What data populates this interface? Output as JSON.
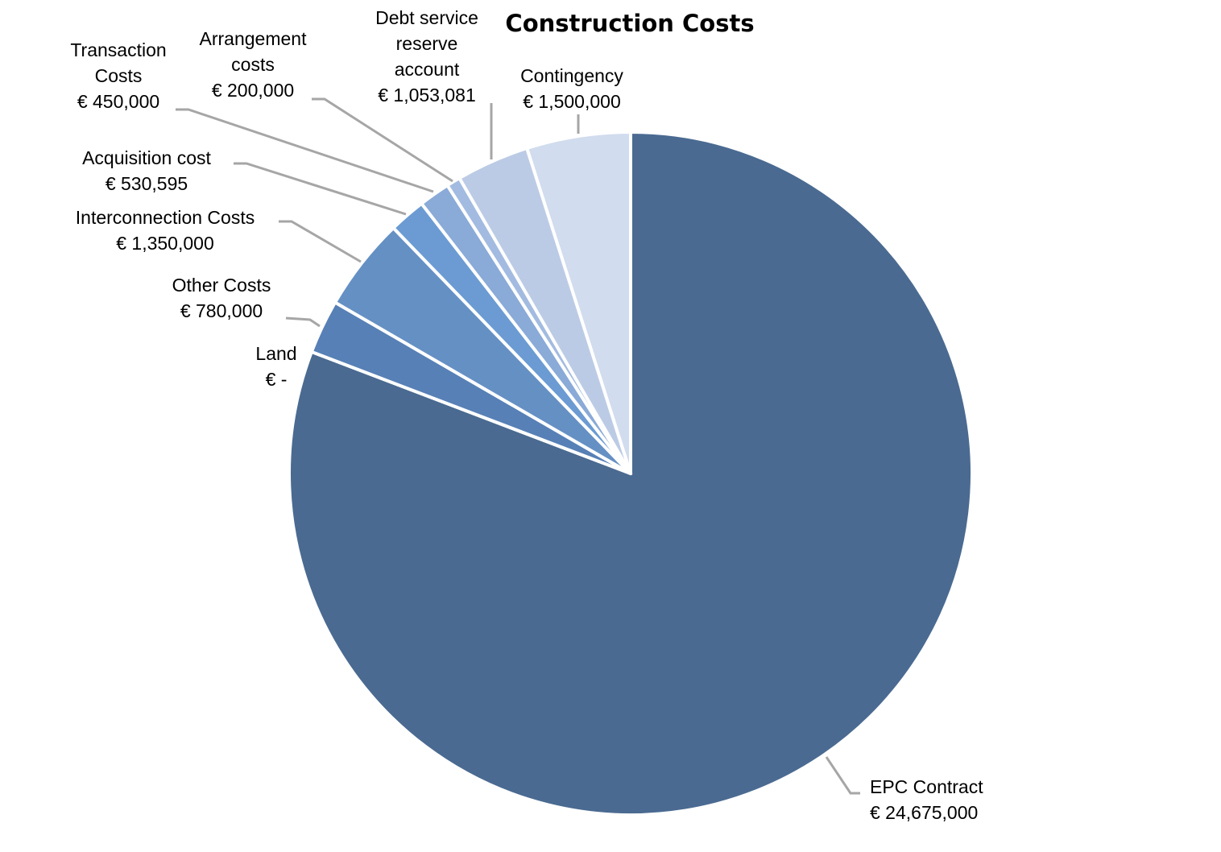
{
  "chart_data": {
    "type": "pie",
    "title": "Construction Costs",
    "start": "top",
    "direction": "clockwise",
    "slices": [
      {
        "name": "EPC Contract",
        "value": 24675000,
        "label_value": "€ 24,675,000",
        "color": "#4a6a91"
      },
      {
        "name": "Land",
        "value": 0,
        "label_value": "€ -",
        "color": "#4a6a91"
      },
      {
        "name": "Other Costs",
        "value": 780000,
        "label_value": "€ 780,000",
        "color": "#5780b6"
      },
      {
        "name": "Interconnection  Costs",
        "value": 1350000,
        "label_value": "€ 1,350,000",
        "color": "#6590c4"
      },
      {
        "name": "Acquisition cost",
        "value": 530595,
        "label_value": "€ 530,595",
        "color": "#6b9bd2"
      },
      {
        "name": "Transaction Costs",
        "value": 450000,
        "label_value": "€ 450,000",
        "color": "#8aaad7"
      },
      {
        "name": "Arrangement costs",
        "value": 200000,
        "label_value": "€ 200,000",
        "color": "#a3bbe0"
      },
      {
        "name": "Debt service reserve account",
        "value": 1053081,
        "label_value": "€ 1,053,081",
        "color": "#bccbe5"
      },
      {
        "name": "Contingency",
        "value": 1500000,
        "label_value": "€ 1,500,000",
        "color": "#d1dcee"
      }
    ]
  }
}
